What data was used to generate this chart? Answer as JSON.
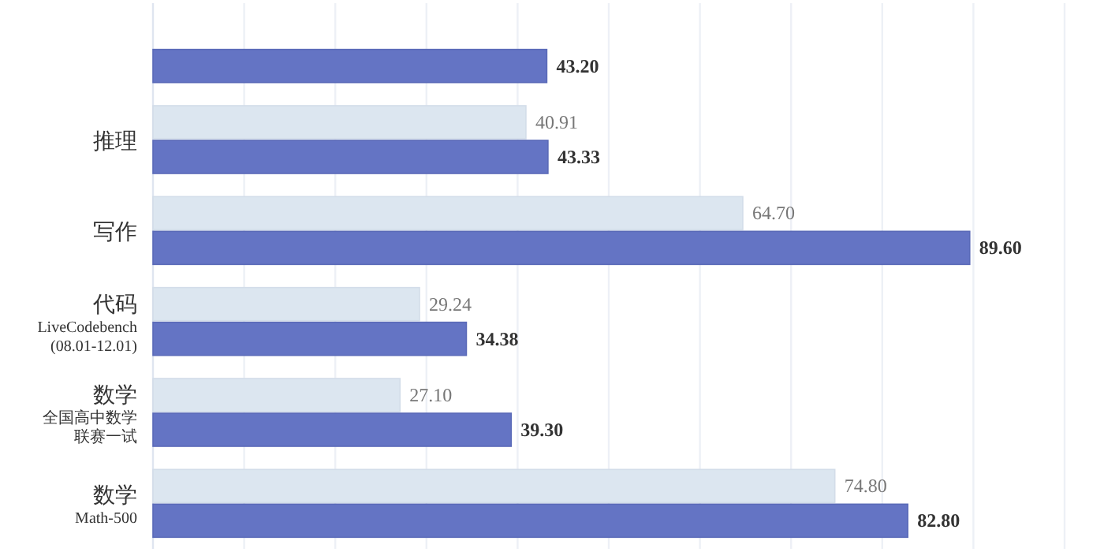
{
  "chart_data": {
    "type": "bar",
    "orientation": "horizontal",
    "categories": [
      null,
      "推理",
      "写作",
      "代码\nLiveCodebench\n(08.01-12.01)",
      "数学全国高中数学联赛一试",
      "数学\nMath-500"
    ],
    "series": [
      {
        "color": "#dce6f0",
        "values": [
          null,
          40.91,
          64.7,
          29.24,
          27.1,
          74.8
        ],
        "value_labels": [
          null,
          "40.91",
          "64.70",
          "29.24",
          "27.10",
          "74.80"
        ]
      },
      {
        "color": "#6474c4",
        "values": [
          43.2,
          43.33,
          89.6,
          34.38,
          39.3,
          82.8
        ],
        "value_labels": [
          "43.20",
          "43.33",
          "89.60",
          "34.38",
          "39.30",
          "82.80"
        ]
      }
    ],
    "xlim": [
      0,
      100
    ],
    "xticks": [
      {
        "value": 0,
        "label": null
      },
      {
        "value": 10,
        "label": null
      },
      {
        "value": 20,
        "label": null
      },
      {
        "value": 30,
        "label": null
      },
      {
        "value": 40,
        "label": null
      },
      {
        "value": 50,
        "label": null
      },
      {
        "value": 60,
        "label": null
      },
      {
        "value": 70,
        "label": null
      },
      {
        "value": 80,
        "label": null
      },
      {
        "value": 90,
        "label": null
      },
      {
        "value": 100,
        "label": null
      }
    ],
    "grid": "x",
    "tick_labels": "y"
  }
}
